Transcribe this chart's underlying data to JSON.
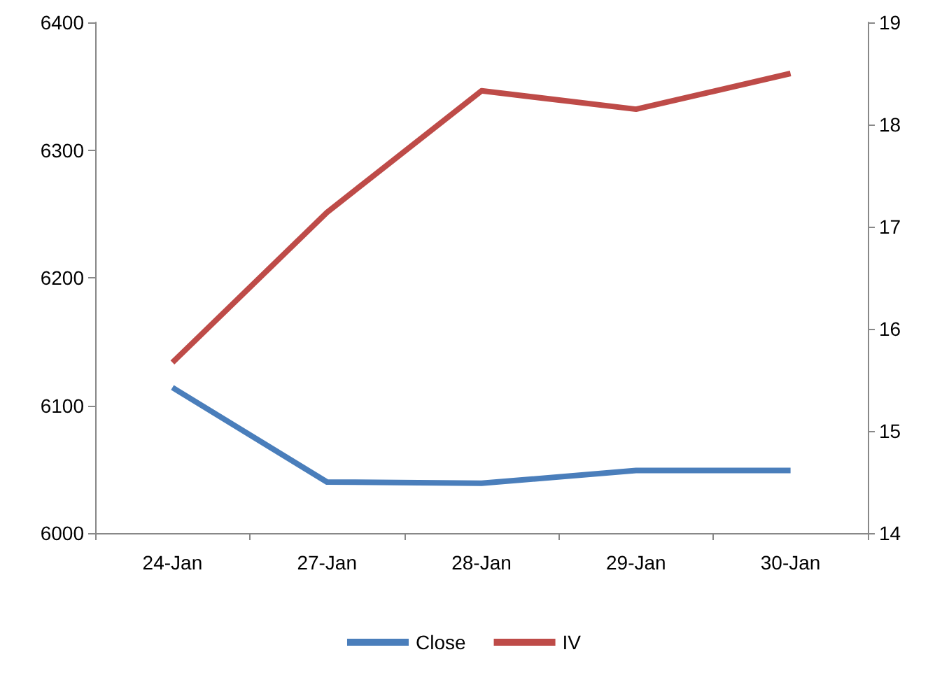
{
  "chart_data": {
    "type": "line",
    "categories": [
      "24-Jan",
      "27-Jan",
      "28-Jan",
      "29-Jan",
      "30-Jan"
    ],
    "series": [
      {
        "name": "Close",
        "color": "#4a7ebb",
        "values": [
          6114,
          6040,
          6039,
          6049,
          6049
        ]
      },
      {
        "name": "IV",
        "color": "#be4b48",
        "axis": "y2",
        "values": [
          15.67,
          17.14,
          18.33,
          18.15,
          18.5
        ]
      }
    ],
    "ylim": [
      6000,
      6400
    ],
    "yticks": [
      6000,
      6100,
      6200,
      6300,
      6400
    ],
    "y2lim": [
      14,
      19
    ],
    "y2ticks": [
      14,
      15,
      16,
      17,
      18,
      19
    ],
    "grid": false,
    "legend": "bottom",
    "marker": "none",
    "line_style": "solid"
  }
}
